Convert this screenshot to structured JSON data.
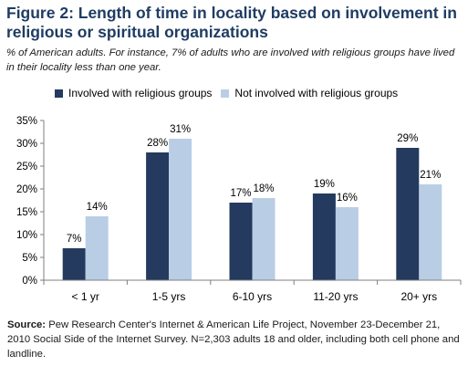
{
  "title": "Figure 2: Length of time in locality based on involvement in religious or spiritual organizations",
  "subtitle": "% of American adults. For instance, 7% of adults who are involved with religious groups have lived in their locality less than one year.",
  "source": {
    "label": "Source:",
    "text": "Pew Research Center's Internet & American Life Project, November 23-December 21, 2010 Social Side of the Internet Survey. N=2,303 adults 18 and older, including both cell phone and landline."
  },
  "colors": {
    "series1": "#243a5e",
    "series2": "#b9cde5",
    "axis": "#7f7f7f",
    "title": "#1f3c63"
  },
  "chart_data": {
    "type": "bar",
    "categories": [
      "< 1 yr",
      "1-5 yrs",
      "6-10 yrs",
      "11-20 yrs",
      "20+ yrs"
    ],
    "series": [
      {
        "name": "Involved with religious groups",
        "values": [
          7,
          28,
          17,
          19,
          29
        ]
      },
      {
        "name": "Not involved with religious groups",
        "values": [
          14,
          31,
          18,
          16,
          21
        ]
      }
    ],
    "value_labels": [
      [
        "7%",
        "28%",
        "17%",
        "19%",
        "29%"
      ],
      [
        "14%",
        "31%",
        "18%",
        "16%",
        "21%"
      ]
    ],
    "yticks": [
      "0%",
      "5%",
      "10%",
      "15%",
      "20%",
      "25%",
      "30%",
      "35%"
    ],
    "ylim": [
      0,
      35
    ],
    "legend": "top",
    "grid": false
  }
}
